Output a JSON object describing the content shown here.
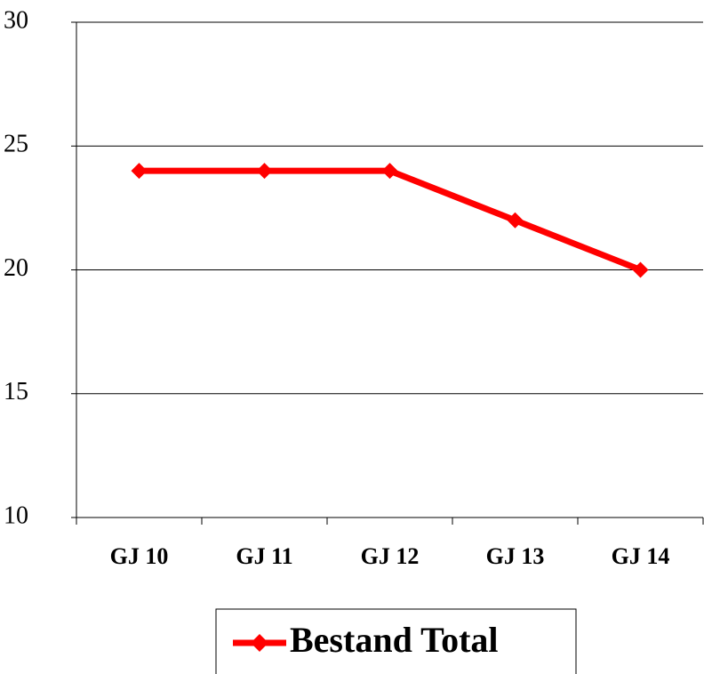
{
  "chart_data": {
    "type": "line",
    "categories": [
      "GJ 10",
      "GJ 11",
      "GJ 12",
      "GJ 13",
      "GJ 14"
    ],
    "series": [
      {
        "name": "Bestand Total",
        "color": "#ff0000",
        "values": [
          24,
          24,
          24,
          22,
          20
        ]
      }
    ],
    "ylim": [
      10,
      30
    ],
    "yticks": [
      10,
      15,
      20,
      25,
      30
    ],
    "grid": true,
    "legend": "bottom"
  }
}
